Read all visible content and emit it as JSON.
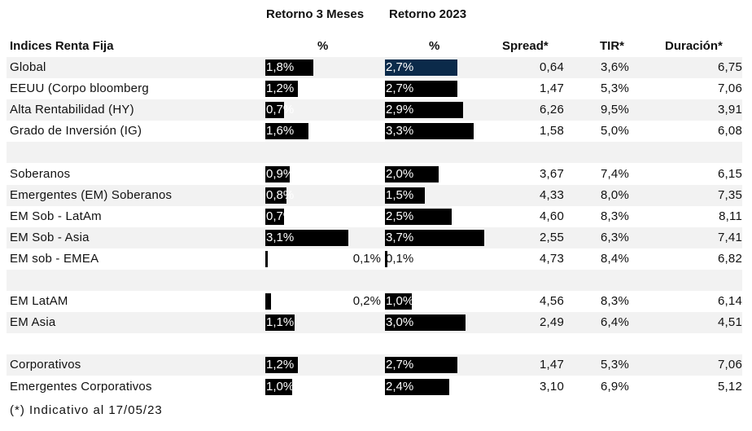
{
  "headers": {
    "col_3m": "Retorno 3 Meses",
    "col_2023": "Retorno 2023",
    "name": "Indices Renta Fija",
    "pct_3m": "%",
    "pct_2023": "%",
    "spread": "Spread*",
    "tir": "TIR*",
    "duracion": "Duración*"
  },
  "bar_scale_max_pct": 3.7,
  "rows": [
    {
      "name": "Global",
      "r3m": "1,8%",
      "r3m_value": 1.8,
      "r23": "2,7%",
      "r23_value": 2.7,
      "spread": "0,64",
      "tir": "3,6%",
      "dur": "6,75",
      "shade": true,
      "accent23": true
    },
    {
      "name": "EEUU (Corpo bloomberg",
      "r3m": "1,2%",
      "r3m_value": 1.2,
      "r23": "2,7%",
      "r23_value": 2.7,
      "spread": "1,47",
      "tir": "5,3%",
      "dur": "7,06",
      "shade": false
    },
    {
      "name": "Alta Rentabilidad (HY)",
      "r3m": "0,7%",
      "r3m_value": 0.7,
      "r23": "2,9%",
      "r23_value": 2.9,
      "spread": "6,26",
      "tir": "9,5%",
      "dur": "3,91",
      "shade": true
    },
    {
      "name": "Grado de Inversión (IG)",
      "r3m": "1,6%",
      "r3m_value": 1.6,
      "r23": "3,3%",
      "r23_value": 3.3,
      "spread": "1,58",
      "tir": "5,0%",
      "dur": "6,08",
      "shade": false
    },
    {
      "blank": true,
      "shade": true
    },
    {
      "name": "Soberanos",
      "r3m": "0,9%",
      "r3m_value": 0.9,
      "r23": "2,0%",
      "r23_value": 2.0,
      "spread": "3,67",
      "tir": "7,4%",
      "dur": "6,15",
      "shade": false
    },
    {
      "name": "Emergentes (EM) Soberanos",
      "r3m": "0,8%",
      "r3m_value": 0.8,
      "r23": "1,5%",
      "r23_value": 1.5,
      "spread": "4,33",
      "tir": "8,0%",
      "dur": "7,35",
      "shade": true
    },
    {
      "name": "EM Sob - LatAm",
      "r3m": "0,7%",
      "r3m_value": 0.7,
      "r23": "2,5%",
      "r23_value": 2.5,
      "spread": "4,60",
      "tir": "8,3%",
      "dur": "8,11",
      "shade": false
    },
    {
      "name": "EM Sob - Asia",
      "r3m": "3,1%",
      "r3m_value": 3.1,
      "r23": "3,7%",
      "r23_value": 3.7,
      "spread": "2,55",
      "tir": "6,3%",
      "dur": "7,41",
      "shade": true
    },
    {
      "name": "EM sob - EMEA",
      "r3m": "0,1%",
      "r3m_value": 0.1,
      "r23": "0,1%",
      "r23_value": 0.1,
      "spread": "4,73",
      "tir": "8,4%",
      "dur": "6,82",
      "shade": false
    },
    {
      "blank": true,
      "shade": true
    },
    {
      "name": "EM LatAM",
      "r3m": "0,2%",
      "r3m_value": 0.2,
      "r23": "1,0%",
      "r23_value": 1.0,
      "spread": "4,56",
      "tir": "8,3%",
      "dur": "6,14",
      "shade": false
    },
    {
      "name": "EM Asia",
      "r3m": "1,1%",
      "r3m_value": 1.1,
      "r23": "3,0%",
      "r23_value": 3.0,
      "spread": "2,49",
      "tir": "6,4%",
      "dur": "4,51",
      "shade": true
    },
    {
      "blank": true,
      "shade": false
    },
    {
      "name": "Corporativos",
      "r3m": "1,2%",
      "r3m_value": 1.2,
      "r23": "2,7%",
      "r23_value": 2.7,
      "spread": "1,47",
      "tir": "5,3%",
      "dur": "7,06",
      "shade": true
    },
    {
      "name": "Emergentes Corporativos",
      "r3m": "1,0%",
      "r3m_value": 1.0,
      "r23": "2,4%",
      "r23_value": 2.4,
      "spread": "3,10",
      "tir": "6,9%",
      "dur": "5,12",
      "shade": false
    }
  ],
  "footnote": "(*) Indicativo al 17/05/23",
  "colors": {
    "bar": "#000000",
    "bar_accent": "#0b2a4a",
    "row_shade": "#f2f2f2"
  }
}
